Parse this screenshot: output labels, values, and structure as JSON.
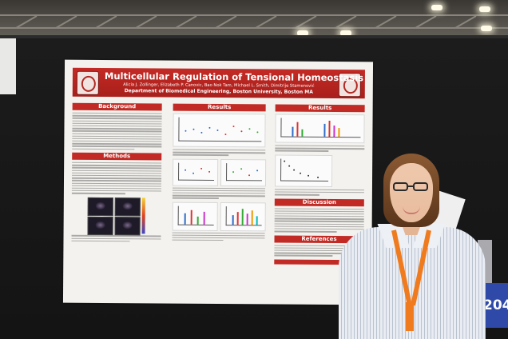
{
  "poster": {
    "title": "Multicellular Regulation of Tensional Homeostasis",
    "authors": "Alicia J. Zollinger, Elizabeth P. Canovic, Bao Nok Tam, Michael L. Smith, Dimitrije Stamenović",
    "affiliation": "Department of Biomedical Engineering, Boston University, Boston MA",
    "sections": {
      "background": "Background",
      "methods": "Methods",
      "results_center": "Results",
      "results_right": "Results",
      "discussion": "Discussion",
      "references": "References"
    },
    "accent_color": "#c22b25"
  },
  "booth_number": "204",
  "lanyard_color": "#ef7b1e"
}
